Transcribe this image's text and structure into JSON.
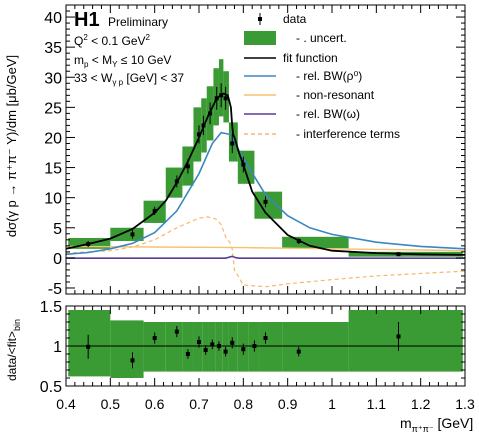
{
  "header": {
    "logo": "H1",
    "status": "Preliminary",
    "cuts": [
      {
        "base": "Q",
        "sup": "2",
        "rest": " < 0.1 GeV",
        "sup2": "2"
      },
      {
        "base": "m",
        "sub": "p",
        "rest": " < M",
        "sub2": "Y",
        "rest2": " ≤ 10 GeV"
      },
      {
        "base": "33 < W",
        "sub": "γ p",
        "rest": " [GeV] < 37"
      }
    ]
  },
  "colors": {
    "uncert": "#3a9b35",
    "fit": "#000000",
    "rho": "#3b87c2",
    "nonres": "#f5c26e",
    "omega": "#5b3c9a",
    "interference": "#f5b96a",
    "data": "#000000"
  },
  "legend": {
    "items": [
      {
        "key": "data",
        "label": "data",
        "style": "marker"
      },
      {
        "key": "uncert",
        "label": "- . uncert.",
        "style": "box"
      },
      {
        "key": "fit",
        "label": "fit function",
        "style": "line"
      },
      {
        "key": "rho",
        "label": "- rel. BW(ρ⁰)",
        "style": "line"
      },
      {
        "key": "nonres",
        "label": "- non-resonant",
        "style": "line"
      },
      {
        "key": "omega",
        "label": "- rel. BW(ω)",
        "style": "line"
      },
      {
        "key": "interference",
        "label": "- interference terms",
        "style": "dashed"
      }
    ]
  },
  "chart_data": [
    {
      "type": "scatter",
      "panel": "top",
      "ylabel": "dσ(γ p → π⁺π⁻ Y)/dm [μb/GeV]",
      "xlim": [
        0.4,
        1.3
      ],
      "ylim": [
        -6,
        42
      ],
      "yticks": [
        -5,
        0,
        5,
        10,
        15,
        20,
        25,
        30,
        35,
        40
      ],
      "series": [
        {
          "name": "data",
          "x": [
            0.45,
            0.55,
            0.6,
            0.65,
            0.675,
            0.7,
            0.71,
            0.725,
            0.74,
            0.75,
            0.76,
            0.775,
            0.8,
            0.85,
            0.925,
            1.15
          ],
          "y": [
            2.3,
            3.9,
            7.8,
            12.7,
            15.2,
            20.5,
            22.0,
            24.0,
            26.5,
            27.0,
            26.5,
            19.0,
            15.5,
            9.3,
            2.8,
            0.6
          ],
          "err": [
            0.5,
            0.7,
            0.7,
            1.0,
            1.2,
            1.5,
            1.6,
            1.8,
            1.9,
            2.0,
            1.9,
            1.6,
            1.3,
            0.9,
            0.5,
            0.2
          ],
          "uncert_lo": [
            1.5,
            2.8,
            5.8,
            10.0,
            12.0,
            16.0,
            17.5,
            19.5,
            22.0,
            23.5,
            22.5,
            16.0,
            12.3,
            6.5,
            1.6,
            0.2
          ],
          "uncert_hi": [
            3.3,
            5.0,
            9.5,
            15.0,
            18.5,
            25.0,
            26.5,
            28.5,
            31.5,
            33.0,
            31.0,
            22.5,
            17.8,
            11.0,
            3.5,
            1.0
          ]
        },
        {
          "name": "fit function",
          "x": [
            0.4,
            0.45,
            0.5,
            0.55,
            0.6,
            0.625,
            0.65,
            0.675,
            0.7,
            0.72,
            0.74,
            0.755,
            0.765,
            0.772,
            0.775,
            0.777,
            0.78,
            0.79,
            0.8,
            0.82,
            0.85,
            0.9,
            0.95,
            1.0,
            1.1,
            1.2,
            1.3
          ],
          "y": [
            1.5,
            2.3,
            3.2,
            4.8,
            7.5,
            9.5,
            12.5,
            16.0,
            20.0,
            23.5,
            26.5,
            27.3,
            27.0,
            25.0,
            22.0,
            20.5,
            20.0,
            17.5,
            15.5,
            11.0,
            7.5,
            3.8,
            2.0,
            1.2,
            0.8,
            0.6,
            0.5
          ]
        },
        {
          "name": "rel. BW(ρ⁰)",
          "x": [
            0.4,
            0.45,
            0.5,
            0.55,
            0.6,
            0.65,
            0.7,
            0.73,
            0.75,
            0.77,
            0.8,
            0.85,
            0.9,
            0.95,
            1.0,
            1.1,
            1.2,
            1.3
          ],
          "y": [
            0.6,
            0.9,
            1.5,
            2.4,
            4.2,
            7.8,
            14.0,
            19.0,
            20.8,
            20.5,
            16.5,
            10.5,
            7.0,
            5.0,
            3.9,
            2.6,
            1.9,
            1.5
          ]
        },
        {
          "name": "non-resonant",
          "x": [
            0.4,
            0.5,
            0.6,
            0.7,
            0.8,
            0.9,
            1.0,
            1.1,
            1.2,
            1.3
          ],
          "y": [
            1.9,
            1.85,
            1.8,
            1.75,
            1.7,
            1.6,
            1.5,
            1.4,
            1.3,
            1.2
          ]
        },
        {
          "name": "rel. BW(ω)",
          "x": [
            0.4,
            0.76,
            0.775,
            0.782,
            0.79,
            1.3
          ],
          "y": [
            -0.05,
            -0.05,
            0.25,
            0.05,
            -0.05,
            -0.05
          ]
        },
        {
          "name": "interference terms",
          "x": [
            0.4,
            0.5,
            0.55,
            0.6,
            0.65,
            0.7,
            0.72,
            0.74,
            0.75,
            0.76,
            0.77,
            0.775,
            0.78,
            0.8,
            0.85,
            0.9,
            1.0,
            1.1,
            1.2,
            1.3
          ],
          "y": [
            0.8,
            1.2,
            1.8,
            3.0,
            5.0,
            6.6,
            6.8,
            6.4,
            5.5,
            3.5,
            2.5,
            1.5,
            -2.0,
            -4.5,
            -4.8,
            -4.3,
            -3.6,
            -3.0,
            -2.6,
            -2.2
          ]
        }
      ]
    },
    {
      "type": "scatter",
      "panel": "bottom",
      "ylabel": "data/<fit>",
      "ylabel_sub": "bin",
      "xlabel": "m",
      "xlabel_sub": "π⁺π⁻",
      "xlabel_unit": " [GeV]",
      "xlim": [
        0.4,
        1.3
      ],
      "ylim": [
        0.5,
        1.5
      ],
      "yticks": [
        0.5,
        1,
        1.5
      ],
      "xticks": [
        0.4,
        0.5,
        0.6,
        0.7,
        0.8,
        0.9,
        1,
        1.1,
        1.2,
        1.3
      ],
      "xtick_labels": [
        "0.4",
        "0.5",
        "0.6",
        "0.7",
        "0.8",
        "0.9",
        "1",
        "1.1",
        "1.2",
        "1.3"
      ],
      "reference_line": 1,
      "series": [
        {
          "name": "ratio",
          "x": [
            0.45,
            0.55,
            0.6,
            0.65,
            0.675,
            0.7,
            0.715,
            0.73,
            0.745,
            0.76,
            0.775,
            0.8,
            0.825,
            0.85,
            0.925,
            1.15
          ],
          "y": [
            0.99,
            0.82,
            1.1,
            1.18,
            0.9,
            1.05,
            0.95,
            1.02,
            1.0,
            0.93,
            1.04,
            0.96,
            1.0,
            1.1,
            0.93,
            1.12
          ],
          "err": [
            0.15,
            0.1,
            0.07,
            0.07,
            0.06,
            0.07,
            0.06,
            0.06,
            0.06,
            0.06,
            0.07,
            0.07,
            0.07,
            0.07,
            0.06,
            0.18
          ],
          "uncert_lo": [
            0.62,
            0.6,
            0.68,
            0.68,
            0.68,
            0.68,
            0.68,
            0.68,
            0.68,
            0.68,
            0.68,
            0.68,
            0.68,
            0.68,
            0.68,
            0.68
          ],
          "uncert_hi": [
            1.45,
            1.32,
            1.3,
            1.3,
            1.3,
            1.3,
            1.3,
            1.3,
            1.3,
            1.3,
            1.3,
            1.3,
            1.3,
            1.3,
            1.3,
            1.45
          ]
        }
      ]
    }
  ]
}
